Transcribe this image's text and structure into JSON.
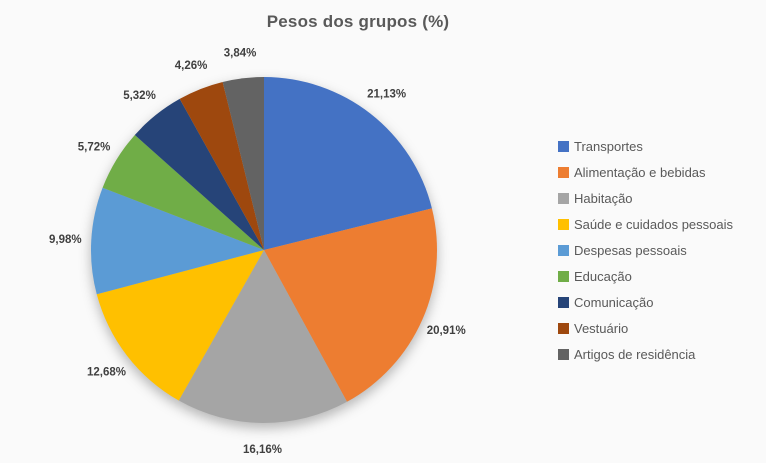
{
  "title": "Pesos dos grupos (%)",
  "colors": {
    "background": "#fafafa",
    "title_text": "#595959",
    "data_label_text": "#404040",
    "legend_text": "#595959"
  },
  "chart_data": {
    "type": "pie",
    "title": "Pesos dos grupos (%)",
    "start_angle_deg": 0,
    "direction": "clockwise",
    "legend_position": "right",
    "data_labels": "outside, percent with comma decimal separator",
    "series": [
      {
        "name": "Transportes",
        "value": 21.13,
        "label": "21,13%",
        "color": "#4472C4"
      },
      {
        "name": "Alimentação e bebidas",
        "value": 20.91,
        "label": "20,91%",
        "color": "#ED7D31"
      },
      {
        "name": "Habitação",
        "value": 16.16,
        "label": "16,16%",
        "color": "#A5A5A5"
      },
      {
        "name": "Saúde e cuidados pessoais",
        "value": 12.68,
        "label": "12,68%",
        "color": "#FFC000"
      },
      {
        "name": "Despesas pessoais",
        "value": 9.98,
        "label": "9,98%",
        "color": "#5B9BD5"
      },
      {
        "name": "Educação",
        "value": 5.72,
        "label": "5,72%",
        "color": "#70AD47"
      },
      {
        "name": "Comunicação",
        "value": 5.32,
        "label": "5,32%",
        "color": "#264478"
      },
      {
        "name": "Vestuário",
        "value": 4.26,
        "label": "4,26%",
        "color": "#9E480E"
      },
      {
        "name": "Artigos de residência",
        "value": 3.84,
        "label": "3,84%",
        "color": "#636363"
      }
    ]
  }
}
